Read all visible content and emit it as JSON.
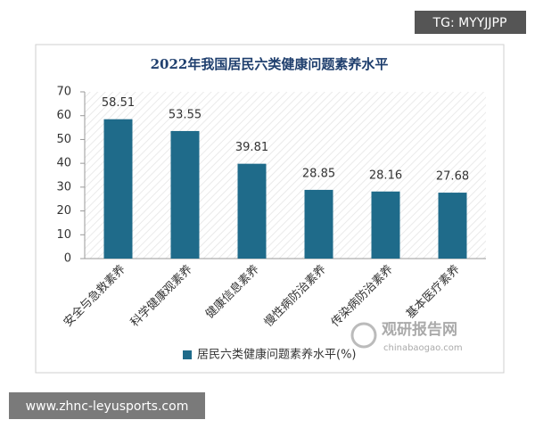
{
  "chart_data": {
    "type": "bar",
    "title": "2022年我国居民六类健康问题素养水平",
    "categories": [
      "安全与急救素养",
      "科学健康观素养",
      "健康信息素养",
      "慢性病防治素养",
      "传染病防治素养",
      "基本医疗素养"
    ],
    "series": [
      {
        "name": "居民六类健康问题素养水平(%)",
        "color": "#1f6b8a",
        "values": [
          58.51,
          53.55,
          39.81,
          28.85,
          28.16,
          27.68
        ]
      }
    ],
    "ylim": [
      0,
      70
    ],
    "yticks": [
      0,
      10,
      20,
      30,
      40,
      50,
      60,
      70
    ],
    "legend": "bottom"
  },
  "watermark": "TG: MYYJJPP",
  "footer_url": "www.zhnc-leyusports.com",
  "logo": {
    "name": "观研报告网",
    "url": "chinabaogao.com"
  }
}
